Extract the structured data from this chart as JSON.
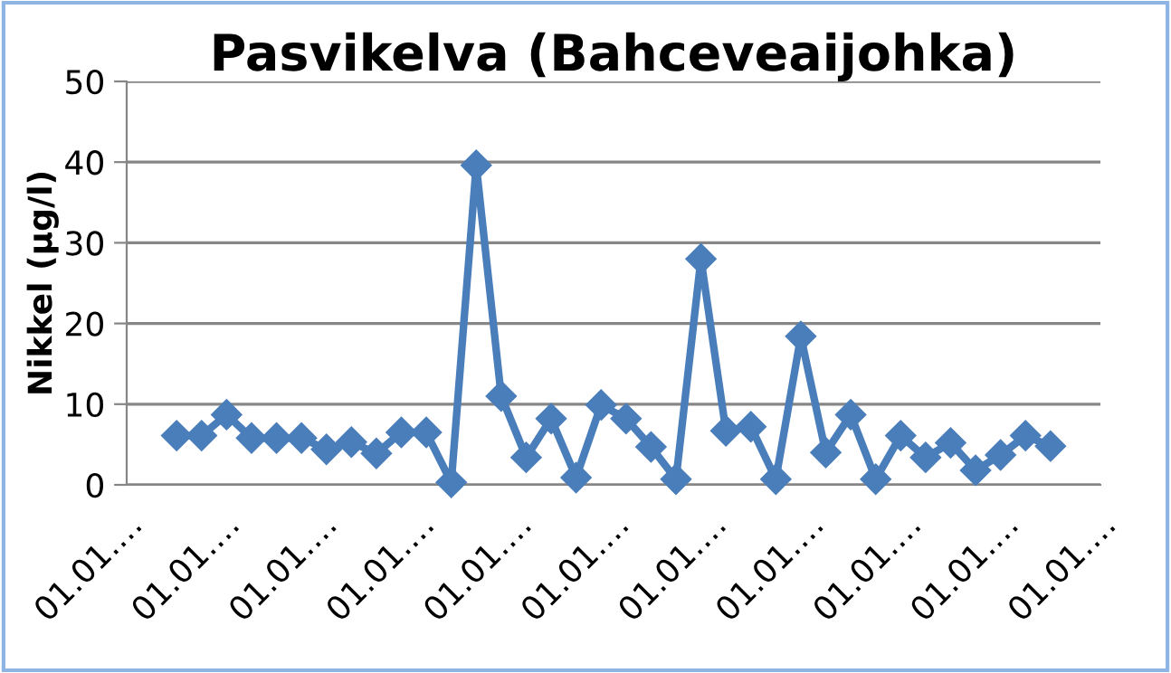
{
  "chart_data": {
    "type": "line",
    "title": "Pasvikelva (Bahceveaijohka)",
    "ylabel": "Nikkel (µg/l)",
    "categories": [
      null,
      null,
      null,
      null,
      null,
      null,
      null,
      null,
      null,
      null,
      null,
      null,
      null,
      null,
      null,
      null,
      null,
      null,
      null,
      null,
      null,
      null,
      null,
      null,
      null,
      null,
      null,
      null,
      null,
      null,
      null,
      null,
      null,
      null,
      null,
      null
    ],
    "series": [
      {
        "color": "#4a7ebb",
        "values": [
          6.1,
          6.1,
          8.7,
          5.8,
          5.8,
          5.8,
          4.4,
          5.3,
          3.9,
          6.5,
          6.5,
          0.3,
          39.6,
          11.0,
          3.4,
          8.2,
          0.9,
          9.9,
          8.2,
          4.7,
          0.7,
          28.0,
          6.7,
          7.2,
          0.7,
          18.4,
          4.0,
          8.7,
          0.7,
          6.1,
          3.4,
          5.2,
          1.8,
          3.7,
          6.1,
          4.8
        ]
      }
    ],
    "annotations": [
      "01.01.…",
      "01.01.…",
      "01.01.…",
      "01.01.…",
      "01.01.…",
      "01.01.…",
      "01.01.…",
      "01.01.…",
      "01.01.…",
      "01.01.…",
      "01.01.…"
    ],
    "ylim": [
      0,
      50
    ],
    "yticks": [
      0,
      10,
      20,
      30,
      40,
      50
    ],
    "grid": "y",
    "marker": "diamond",
    "line_style": "solid"
  }
}
